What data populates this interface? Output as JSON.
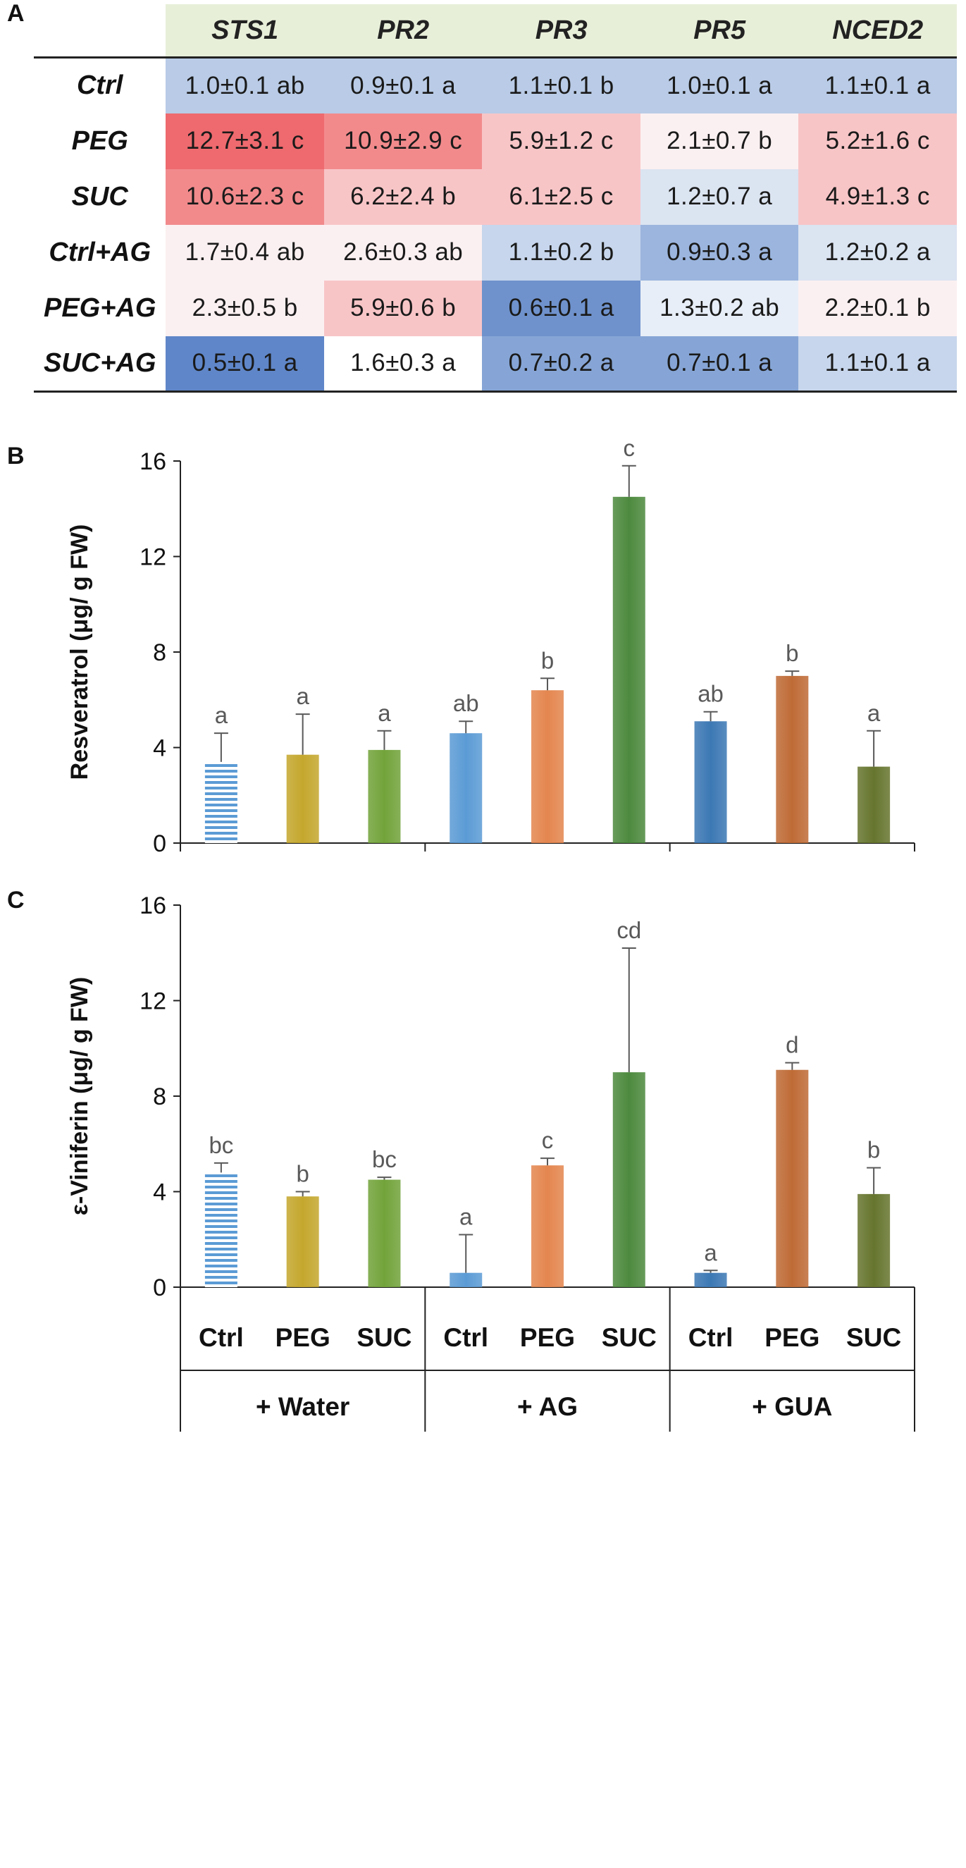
{
  "panels": {
    "a": "A",
    "b": "B",
    "c": "C"
  },
  "table": {
    "columns": [
      "STS1",
      "PR2",
      "PR3",
      "PR5",
      "NCED2"
    ],
    "rows": [
      {
        "label": "Ctrl",
        "cells": [
          {
            "text": "1.0±0.1 ab",
            "color": "#b9cbe6"
          },
          {
            "text": "0.9±0.1 a",
            "color": "#b9cbe6"
          },
          {
            "text": "1.1±0.1 b",
            "color": "#b9cbe6"
          },
          {
            "text": "1.0±0.1 a",
            "color": "#b9cbe6"
          },
          {
            "text": "1.1±0.1 a",
            "color": "#b9cbe6"
          }
        ]
      },
      {
        "label": "PEG",
        "cells": [
          {
            "text": "12.7±3.1 c",
            "color": "#ee6a6e"
          },
          {
            "text": "10.9±2.9 c",
            "color": "#f28a8c"
          },
          {
            "text": "5.9±1.2 c",
            "color": "#f8c5c7"
          },
          {
            "text": "2.1±0.7 b",
            "color": "#fbf0f1"
          },
          {
            "text": "5.2±1.6 c",
            "color": "#f8c5c7"
          }
        ]
      },
      {
        "label": "SUC",
        "cells": [
          {
            "text": "10.6±2.3 c",
            "color": "#f28a8c"
          },
          {
            "text": "6.2±2.4 b",
            "color": "#f8c5c7"
          },
          {
            "text": "6.1±2.5 c",
            "color": "#f8c5c7"
          },
          {
            "text": "1.2±0.7 a",
            "color": "#dbe4f1"
          },
          {
            "text": "4.9±1.3 c",
            "color": "#f8c5c7"
          }
        ]
      },
      {
        "label": "Ctrl+AG",
        "cells": [
          {
            "text": "1.7±0.4 ab",
            "color": "#fbf0f1"
          },
          {
            "text": "2.6±0.3 ab",
            "color": "#fbf0f1"
          },
          {
            "text": "1.1±0.2 b",
            "color": "#c7d6ec"
          },
          {
            "text": "0.9±0.3 a",
            "color": "#9bb5de"
          },
          {
            "text": "1.2±0.2 a",
            "color": "#dbe4f1"
          }
        ]
      },
      {
        "label": "PEG+AG",
        "cells": [
          {
            "text": "2.3±0.5 b",
            "color": "#fbf0f1"
          },
          {
            "text": "5.9±0.6 b",
            "color": "#f8c5c7"
          },
          {
            "text": "0.6±0.1 a",
            "color": "#6f92cc"
          },
          {
            "text": "1.3±0.2 ab",
            "color": "#e8eef7"
          },
          {
            "text": "2.2±0.1 b",
            "color": "#fbf0f1"
          }
        ]
      },
      {
        "label": "SUC+AG",
        "cells": [
          {
            "text": "0.5±0.1 a",
            "color": "#5f86c8"
          },
          {
            "text": "1.6±0.3 a",
            "color": "#ffffff"
          },
          {
            "text": "0.7±0.2 a",
            "color": "#86a5d6"
          },
          {
            "text": "0.7±0.1 a",
            "color": "#86a5d6"
          },
          {
            "text": "1.1±0.1 a",
            "color": "#c7d6ec"
          }
        ]
      }
    ]
  },
  "chart_data": [
    {
      "type": "bar",
      "panel": "B",
      "title": "",
      "xlabel": "",
      "ylabel": "Resveratrol (μg/ g FW)",
      "ylim": [
        0,
        16
      ],
      "yticks": [
        "0",
        "4",
        "8",
        "12",
        "16"
      ],
      "categories": [
        "Ctrl",
        "PEG",
        "SUC",
        "Ctrl",
        "PEG",
        "SUC",
        "Ctrl",
        "PEG",
        "SUC"
      ],
      "groups": [
        "+ Water",
        "+ AG",
        "+ GUA"
      ],
      "values": [
        3.4,
        3.7,
        3.9,
        4.6,
        6.4,
        14.5,
        5.1,
        7.0,
        3.2
      ],
      "errors": [
        1.2,
        1.7,
        0.8,
        0.5,
        0.5,
        1.3,
        0.4,
        0.2,
        1.5
      ],
      "labels": [
        "a",
        "a",
        "a",
        "ab",
        "b",
        "c",
        "ab",
        "b",
        "a"
      ]
    },
    {
      "type": "bar",
      "panel": "C",
      "title": "",
      "xlabel": "",
      "ylabel": "ε-Viniferin (μg/ g FW)",
      "ylim": [
        0,
        16
      ],
      "yticks": [
        "0",
        "4",
        "8",
        "12",
        "16"
      ],
      "categories": [
        "Ctrl",
        "PEG",
        "SUC",
        "Ctrl",
        "PEG",
        "SUC",
        "Ctrl",
        "PEG",
        "SUC"
      ],
      "groups": [
        "+ Water",
        "+ AG",
        "+ GUA"
      ],
      "values": [
        4.8,
        3.8,
        4.5,
        0.6,
        5.1,
        9.0,
        0.6,
        9.1,
        3.9
      ],
      "errors": [
        0.4,
        0.2,
        0.1,
        1.6,
        0.3,
        5.2,
        0.1,
        0.3,
        1.1
      ],
      "labels": [
        "bc",
        "b",
        "bc",
        "a",
        "c",
        "cd",
        "a",
        "d",
        "b"
      ]
    }
  ],
  "bar_colors": [
    "#5b9bd5",
    "#c4a72d",
    "#72a33a",
    "#5b9bd5",
    "#e4864f",
    "#4d8a3e",
    "#3c78b4",
    "#bf6b36",
    "#66752e"
  ]
}
